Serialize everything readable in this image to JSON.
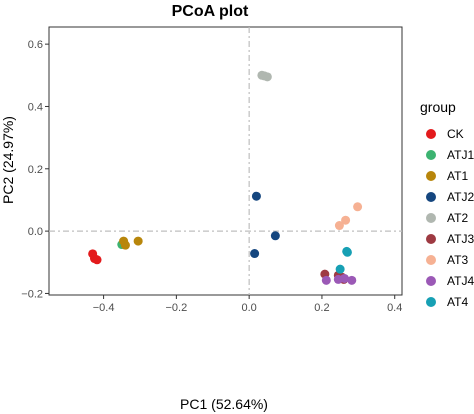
{
  "chart_data": {
    "type": "scatter",
    "title": "PCoA plot",
    "xlabel": "PC1 (52.64%)",
    "ylabel": "PC2 (24.97%)",
    "xlim": [
      -0.55,
      0.42
    ],
    "ylim": [
      -0.205,
      0.655
    ],
    "xticks": [
      -0.4,
      -0.2,
      0.0,
      0.2,
      0.4
    ],
    "xtick_labels": [
      "−0.4",
      "−0.2",
      "0.0",
      "0.2",
      "0.4"
    ],
    "yticks": [
      -0.2,
      0.0,
      0.2,
      0.4,
      0.6
    ],
    "ytick_labels": [
      "−0.2",
      "0.0",
      "0.2",
      "0.4",
      "0.6"
    ],
    "grid": false,
    "reference_lines": {
      "x": 0.0,
      "y": 0.0,
      "style": "dashed"
    },
    "legend": {
      "title": "group",
      "placement": "right"
    },
    "series": [
      {
        "name": "CK",
        "color": "#e31a1c",
        "points": [
          [
            -0.43,
            -0.073
          ],
          [
            -0.425,
            -0.088
          ],
          [
            -0.418,
            -0.092
          ]
        ]
      },
      {
        "name": "ATJ1",
        "color": "#3cb371",
        "points": [
          [
            -0.35,
            -0.043
          ],
          [
            -0.345,
            -0.038
          ]
        ]
      },
      {
        "name": "AT1",
        "color": "#b8860b",
        "points": [
          [
            -0.345,
            -0.032
          ],
          [
            -0.305,
            -0.032
          ],
          [
            -0.34,
            -0.045
          ]
        ]
      },
      {
        "name": "ATJ2",
        "color": "#15467f",
        "points": [
          [
            0.02,
            0.112
          ],
          [
            0.072,
            -0.015
          ],
          [
            0.015,
            -0.072
          ]
        ]
      },
      {
        "name": "AT2",
        "color": "#b0b7b0",
        "points": [
          [
            0.035,
            0.5
          ],
          [
            0.042,
            0.498
          ],
          [
            0.05,
            0.495
          ]
        ]
      },
      {
        "name": "ATJ3",
        "color": "#9e3a42",
        "points": [
          [
            0.208,
            -0.138
          ],
          [
            0.245,
            -0.142
          ],
          [
            0.255,
            -0.148
          ],
          [
            0.26,
            -0.155
          ]
        ]
      },
      {
        "name": "AT3",
        "color": "#f6b193",
        "points": [
          [
            0.248,
            0.018
          ],
          [
            0.265,
            0.035
          ],
          [
            0.298,
            0.078
          ]
        ]
      },
      {
        "name": "ATJ4",
        "color": "#9b59b6",
        "points": [
          [
            0.212,
            -0.158
          ],
          [
            0.245,
            -0.155
          ],
          [
            0.262,
            -0.152
          ],
          [
            0.282,
            -0.158
          ]
        ]
      },
      {
        "name": "AT4",
        "color": "#17a0b4",
        "points": [
          [
            0.268,
            -0.065
          ],
          [
            0.27,
            -0.068
          ],
          [
            0.25,
            -0.122
          ]
        ]
      }
    ]
  }
}
